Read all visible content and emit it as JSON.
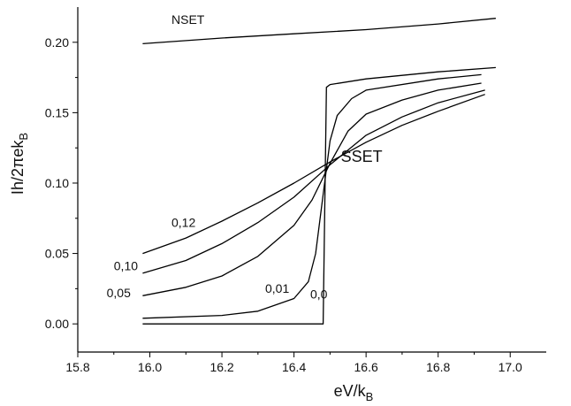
{
  "chart_data": {
    "type": "line",
    "title": "",
    "xlabel": "eV/k",
    "xlabel_sub": "B",
    "ylabel": "Ih/2πek",
    "ylabel_sub": "B",
    "xlim": [
      15.8,
      17.1
    ],
    "ylim": [
      -0.02,
      0.225
    ],
    "xticks": [
      "15.8",
      "16.0",
      "16.2",
      "16.4",
      "16.6",
      "16.8",
      "17.0"
    ],
    "yticks": [
      "0.00",
      "0.05",
      "0.10",
      "0.15",
      "0.20"
    ],
    "series": [
      {
        "name": "NSET",
        "x": [
          15.98,
          16.2,
          16.4,
          16.6,
          16.8,
          16.96
        ],
        "y": [
          0.199,
          0.203,
          0.206,
          0.209,
          0.213,
          0.217
        ]
      },
      {
        "name": "0,0",
        "x": [
          15.98,
          16.2,
          16.4,
          16.48,
          16.481,
          16.49,
          16.5,
          16.6,
          16.8,
          16.96
        ],
        "y": [
          0.0,
          0.0,
          0.0,
          0.0,
          0.0,
          0.168,
          0.17,
          0.174,
          0.179,
          0.182
        ]
      },
      {
        "name": "0,01",
        "x": [
          15.98,
          16.2,
          16.3,
          16.4,
          16.44,
          16.46,
          16.48,
          16.5,
          16.52,
          16.56,
          16.6,
          16.8,
          16.92
        ],
        "y": [
          0.004,
          0.006,
          0.009,
          0.018,
          0.03,
          0.05,
          0.09,
          0.13,
          0.148,
          0.16,
          0.166,
          0.174,
          0.177
        ]
      },
      {
        "name": "0,05",
        "x": [
          15.98,
          16.1,
          16.2,
          16.3,
          16.4,
          16.45,
          16.5,
          16.55,
          16.6,
          16.7,
          16.8,
          16.92
        ],
        "y": [
          0.02,
          0.026,
          0.034,
          0.048,
          0.07,
          0.088,
          0.114,
          0.137,
          0.149,
          0.159,
          0.166,
          0.171
        ]
      },
      {
        "name": "0,10",
        "x": [
          15.98,
          16.1,
          16.2,
          16.3,
          16.4,
          16.5,
          16.6,
          16.7,
          16.8,
          16.93
        ],
        "y": [
          0.036,
          0.045,
          0.057,
          0.072,
          0.09,
          0.113,
          0.134,
          0.147,
          0.157,
          0.166
        ]
      },
      {
        "name": "0,12",
        "x": [
          15.98,
          16.1,
          16.2,
          16.3,
          16.4,
          16.5,
          16.6,
          16.7,
          16.8,
          16.93
        ],
        "y": [
          0.05,
          0.061,
          0.073,
          0.086,
          0.1,
          0.115,
          0.129,
          0.141,
          0.151,
          0.163
        ]
      }
    ],
    "annotations": [
      {
        "text": "NSET",
        "x": 16.06,
        "y": 0.213,
        "size": "normal"
      },
      {
        "text": "SSET",
        "x": 16.53,
        "y": 0.115,
        "size": "large"
      },
      {
        "text": "0,12",
        "x": 16.06,
        "y": 0.069,
        "size": "normal"
      },
      {
        "text": "0,10",
        "x": 15.9,
        "y": 0.038,
        "size": "normal"
      },
      {
        "text": "0,05",
        "x": 15.88,
        "y": 0.019,
        "size": "normal"
      },
      {
        "text": "0,01",
        "x": 16.32,
        "y": 0.022,
        "size": "normal"
      },
      {
        "text": "0,0",
        "x": 16.445,
        "y": 0.018,
        "size": "normal"
      }
    ]
  }
}
